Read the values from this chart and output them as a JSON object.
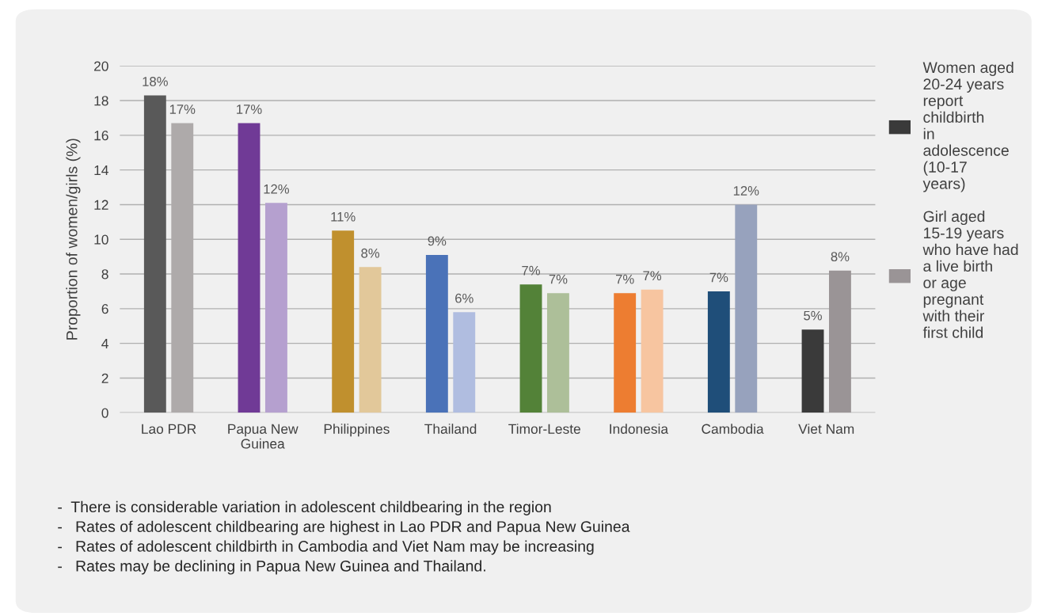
{
  "chart_data": {
    "type": "bar",
    "ylabel": "Proportion of women/girls (%)",
    "categories": [
      "Lao PDR",
      "Papua New Guinea",
      "Philippines",
      "Thailand",
      "Timor-Leste",
      "Indonesia",
      "Cambodia",
      "Viet Nam"
    ],
    "series": [
      {
        "name": "Women aged 20-24 years report childbirth in adolescence (10-17 years)",
        "color": "#3a3a3a",
        "colors": [
          "#595959",
          "#703a96",
          "#c0902e",
          "#4a72b8",
          "#538238",
          "#ed7d31",
          "#1f4e79",
          "#3a3a3a"
        ],
        "values": [
          18.3,
          16.7,
          10.5,
          9.1,
          7.4,
          6.9,
          7.0,
          4.8
        ],
        "value_labels": [
          "18%",
          "17%",
          "11%",
          "9%",
          "7%",
          "7%",
          "7%",
          "5%"
        ]
      },
      {
        "name": "Girl aged 15-19 years who have had a live birth or age pregnant with their first child",
        "color": "#9a9496",
        "colors": [
          "#aeaaaa",
          "#b5a0cf",
          "#e2c89a",
          "#b0bde0",
          "#adbf99",
          "#f7c5a0",
          "#97a2bd",
          "#9a9496"
        ],
        "values": [
          16.7,
          12.1,
          8.4,
          5.8,
          6.9,
          7.1,
          12.0,
          8.2
        ],
        "value_labels": [
          "17%",
          "12%",
          "8%",
          "6%",
          "7%",
          "7%",
          "12%",
          "8%"
        ]
      }
    ],
    "ylim": [
      0,
      20
    ],
    "yticks": [
      0,
      2,
      4,
      6,
      8,
      10,
      12,
      14,
      16,
      18,
      20
    ],
    "grid": "y",
    "legend": "right",
    "annotations": [
      "-  There is considerable variation in adolescent childbearing in the region",
      "-   Rates of adolescent childbearing are highest in Lao PDR and Papua New Guinea",
      "-   Rates of adolescent childbirth in Cambodia and Viet Nam may be increasing",
      "-   Rates may be declining in Papua New Guinea and Thailand."
    ]
  }
}
